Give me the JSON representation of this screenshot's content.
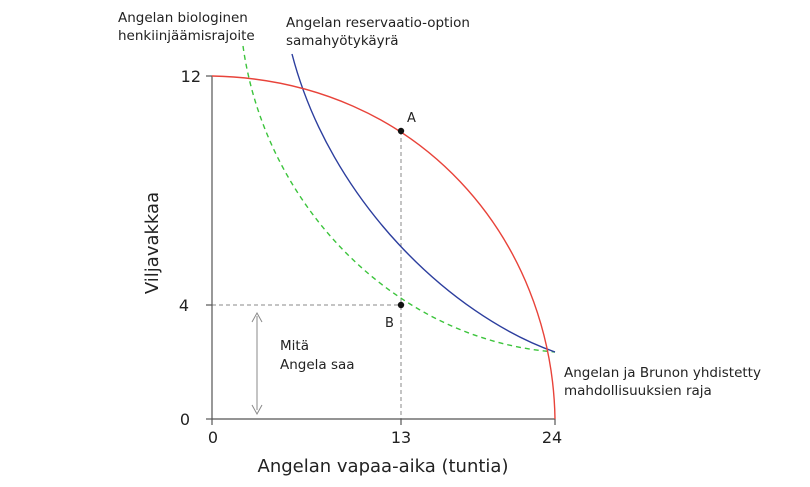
{
  "axes": {
    "x_label": "Angelan vapaa-aika (tuntia)",
    "y_label": "Viljavakkaa",
    "x_ticks": [
      "0",
      "13",
      "24"
    ],
    "y_ticks": [
      "12",
      "4",
      "0"
    ]
  },
  "labels": {
    "survival_constraint": [
      "Angelan biologinen",
      "henkiinjäämisrajoite"
    ],
    "reservation_indifference": [
      "Angelan reservaatio-option",
      "samahyötykäyrä"
    ],
    "joint_frontier": [
      "Angelan ja Brunon yhdistetty",
      "mahdollisuuksien raja"
    ],
    "angela_gets": [
      "Mitä",
      "Angela saa"
    ]
  },
  "points": {
    "A": {
      "label": "A",
      "x": 13,
      "y": 10.3
    },
    "B": {
      "label": "B",
      "x": 13,
      "y": 4
    }
  },
  "colors": {
    "frontier": "#e8433a",
    "indifference": "#2c3e9e",
    "survival": "#3cc43c",
    "axis": "#555555",
    "guide": "#888888"
  }
}
